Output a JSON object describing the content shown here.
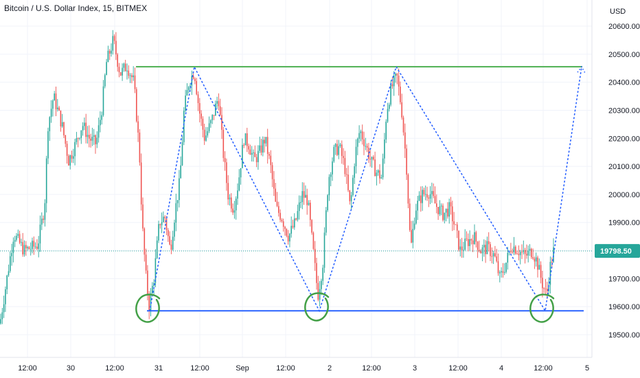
{
  "chart_data": {
    "type": "candlestick",
    "title": "Bitcoin / U.S. Dollar Index, 15, BITMEX",
    "currency": "USD",
    "last_price": "19798.50",
    "y_ticks": [
      "20600.00",
      "20500.00",
      "20400.00",
      "20300.00",
      "20200.00",
      "20100.00",
      "20000.00",
      "19900.00",
      "19800.00",
      "19700.00",
      "19600.00",
      "19500.00"
    ],
    "y_tick_values": [
      20600,
      20500,
      20400,
      20300,
      20200,
      20100,
      20000,
      19900,
      19800,
      19700,
      19600,
      19500
    ],
    "x_ticks": [
      "12:00",
      "30",
      "12:00",
      "31",
      "12:00",
      "Sep",
      "12:00",
      "2",
      "12:00",
      "3",
      "12:00",
      "4",
      "12:00",
      "5"
    ],
    "ylim": [
      19470,
      20690
    ],
    "price_path": [
      [
        0,
        19540
      ],
      [
        10,
        19700
      ],
      [
        20,
        19860
      ],
      [
        35,
        19800
      ],
      [
        55,
        19820
      ],
      [
        65,
        19960
      ],
      [
        70,
        20250
      ],
      [
        78,
        20350
      ],
      [
        90,
        20250
      ],
      [
        100,
        20120
      ],
      [
        110,
        20180
      ],
      [
        120,
        20250
      ],
      [
        130,
        20200
      ],
      [
        140,
        20180
      ],
      [
        148,
        20300
      ],
      [
        155,
        20470
      ],
      [
        165,
        20550
      ],
      [
        175,
        20430
      ],
      [
        185,
        20460
      ],
      [
        195,
        20400
      ],
      [
        203,
        20150
      ],
      [
        207,
        19900
      ],
      [
        212,
        19720
      ],
      [
        217,
        19600
      ],
      [
        224,
        19700
      ],
      [
        232,
        19900
      ],
      [
        240,
        19920
      ],
      [
        248,
        19800
      ],
      [
        255,
        19940
      ],
      [
        262,
        20050
      ],
      [
        268,
        20300
      ],
      [
        275,
        20400
      ],
      [
        283,
        20440
      ],
      [
        290,
        20300
      ],
      [
        298,
        20200
      ],
      [
        308,
        20260
      ],
      [
        318,
        20350
      ],
      [
        325,
        20150
      ],
      [
        332,
        20000
      ],
      [
        340,
        19950
      ],
      [
        347,
        20040
      ],
      [
        355,
        20200
      ],
      [
        362,
        20180
      ],
      [
        370,
        20120
      ],
      [
        378,
        20150
      ],
      [
        386,
        20200
      ],
      [
        394,
        20100
      ],
      [
        402,
        19950
      ],
      [
        410,
        19920
      ],
      [
        420,
        19850
      ],
      [
        430,
        19900
      ],
      [
        440,
        20000
      ],
      [
        448,
        19980
      ],
      [
        456,
        19800
      ],
      [
        463,
        19640
      ],
      [
        470,
        19750
      ],
      [
        478,
        20050
      ],
      [
        486,
        20150
      ],
      [
        494,
        20170
      ],
      [
        502,
        20100
      ],
      [
        510,
        19950
      ],
      [
        517,
        20140
      ],
      [
        524,
        20230
      ],
      [
        532,
        20180
      ],
      [
        540,
        20120
      ],
      [
        548,
        20080
      ],
      [
        556,
        20060
      ],
      [
        563,
        20300
      ],
      [
        570,
        20380
      ],
      [
        578,
        20420
      ],
      [
        585,
        20300
      ],
      [
        592,
        20100
      ],
      [
        598,
        19800
      ],
      [
        605,
        19950
      ],
      [
        615,
        20000
      ],
      [
        625,
        20010
      ],
      [
        635,
        19960
      ],
      [
        645,
        19930
      ],
      [
        655,
        19950
      ],
      [
        663,
        19880
      ],
      [
        670,
        19800
      ],
      [
        680,
        19830
      ],
      [
        690,
        19850
      ],
      [
        700,
        19800
      ],
      [
        710,
        19810
      ],
      [
        720,
        19780
      ],
      [
        728,
        19700
      ],
      [
        736,
        19750
      ],
      [
        745,
        19820
      ],
      [
        755,
        19800
      ],
      [
        765,
        19780
      ],
      [
        775,
        19800
      ],
      [
        782,
        19760
      ],
      [
        790,
        19680
      ],
      [
        796,
        19640
      ],
      [
        801,
        19740
      ],
      [
        806,
        19798
      ]
    ],
    "annotations": {
      "resistance_price": 20455,
      "support_price": 19585,
      "zigzag_points": [
        [
          218,
          19585
        ],
        [
          283,
          20455
        ],
        [
          465,
          19585
        ],
        [
          577,
          20455
        ],
        [
          794,
          19585
        ],
        [
          847,
          20455
        ]
      ],
      "circled_lows": [
        [
          216,
          19600
        ],
        [
          462,
          19605
        ],
        [
          790,
          19600
        ]
      ]
    }
  }
}
